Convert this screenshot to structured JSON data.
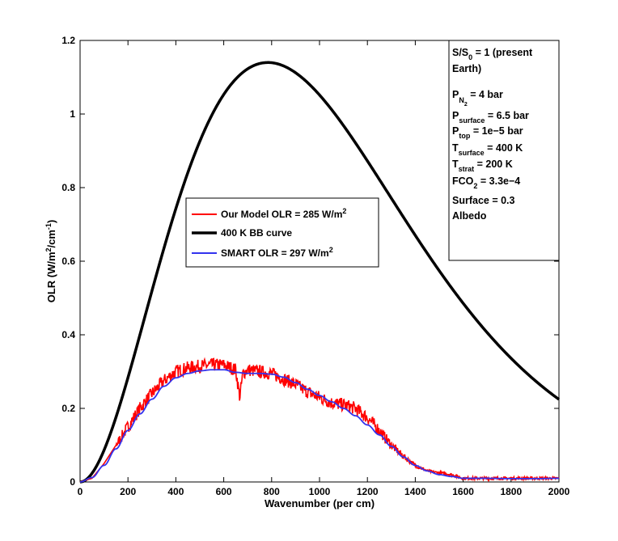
{
  "chart_data": {
    "type": "line",
    "xlabel": "Wavenumber  (per cm)",
    "ylabel": {
      "main": "OLR  (W/m",
      "sup1": "2",
      "mid": "/cm",
      "sup2": "-1",
      "end": ")"
    },
    "xlim": [
      0,
      2000
    ],
    "ylim": [
      0,
      1.2
    ],
    "xticks": [
      0,
      200,
      400,
      600,
      800,
      1000,
      1200,
      1400,
      1600,
      1800,
      2000
    ],
    "xtick_labels": [
      "0",
      "200",
      "400",
      "600",
      "800",
      "1000",
      "1200",
      "1400",
      "1600",
      "1800",
      "2000"
    ],
    "yticks": [
      0,
      0.2,
      0.4,
      0.6,
      0.8,
      1.0,
      1.2
    ],
    "ytick_labels": [
      "0",
      "0.2",
      "0.4",
      "0.6",
      "0.8",
      "1",
      "1.2"
    ],
    "grid": false,
    "legend_position": "center-left",
    "series": [
      {
        "name": "Our Model OLR = 285 W/m2",
        "legend": {
          "text": "Our Model OLR = 285 W/m",
          "sup": "2"
        },
        "color": "#ff0000",
        "style": "noisy",
        "x": [
          0,
          50,
          100,
          150,
          200,
          250,
          300,
          350,
          400,
          450,
          500,
          550,
          600,
          650,
          667,
          680,
          700,
          750,
          800,
          850,
          900,
          950,
          1000,
          1050,
          1100,
          1150,
          1200,
          1250,
          1300,
          1350,
          1400,
          1450,
          1500,
          1550,
          1600,
          1700,
          1800,
          1900,
          2000
        ],
        "y": [
          0,
          0.01,
          0.05,
          0.1,
          0.15,
          0.2,
          0.24,
          0.275,
          0.3,
          0.31,
          0.315,
          0.318,
          0.318,
          0.305,
          0.23,
          0.295,
          0.305,
          0.3,
          0.295,
          0.28,
          0.265,
          0.245,
          0.23,
          0.215,
          0.21,
          0.2,
          0.175,
          0.14,
          0.1,
          0.07,
          0.045,
          0.03,
          0.025,
          0.02,
          0.01,
          0.01,
          0.01,
          0.01,
          0.01
        ]
      },
      {
        "name": "400 K BB curve",
        "legend": {
          "text": "400 K BB curve",
          "sup": ""
        },
        "color": "#000000",
        "style": "planck",
        "temperature_K": 400,
        "y_peak": 1.14
      },
      {
        "name": "SMART OLR = 297 W/m2",
        "legend": {
          "text": "SMART OLR = 297 W/m",
          "sup": "2"
        },
        "color": "#3333ee",
        "style": "smooth",
        "x": [
          0,
          50,
          100,
          150,
          200,
          250,
          300,
          350,
          400,
          450,
          500,
          550,
          600,
          650,
          700,
          750,
          800,
          850,
          900,
          950,
          1000,
          1050,
          1100,
          1150,
          1200,
          1250,
          1300,
          1350,
          1400,
          1450,
          1500,
          1550,
          1600,
          1700,
          1800,
          1900,
          2000
        ],
        "y": [
          0,
          0.012,
          0.045,
          0.09,
          0.14,
          0.185,
          0.225,
          0.26,
          0.283,
          0.295,
          0.302,
          0.305,
          0.305,
          0.298,
          0.295,
          0.295,
          0.293,
          0.285,
          0.27,
          0.252,
          0.235,
          0.218,
          0.2,
          0.18,
          0.155,
          0.128,
          0.097,
          0.068,
          0.045,
          0.03,
          0.02,
          0.015,
          0.01,
          0.01,
          0.009,
          0.009,
          0.01
        ]
      }
    ]
  },
  "annotation": {
    "line1": "S/S",
    "line1_sub": "0",
    "line1_rest": " = 1 (present",
    "line2": "Earth)",
    "pn2_main": "P",
    "pn2_sub": "N",
    "pn2_subsub": "2",
    "pn2_value": " = 4 bar",
    "psurf_main": "P",
    "psurf_sub": "surface",
    "psurf_value": " = 6.5 bar",
    "ptop_main": "P",
    "ptop_sub": "top",
    "ptop_value": " = 1e−5 bar",
    "tsurf_main": "T",
    "tsurf_sub": "surface",
    "tsurf_value": " = 400 K",
    "tstrat_main": "T",
    "tstrat_sub": "strat",
    "tstrat_value": " = 200 K",
    "fco2_main": "FCO",
    "fco2_sub": "2",
    "fco2_value": " = 3.3e−4",
    "albedo1": "Surface  = 0.3",
    "albedo2": "Albedo"
  }
}
